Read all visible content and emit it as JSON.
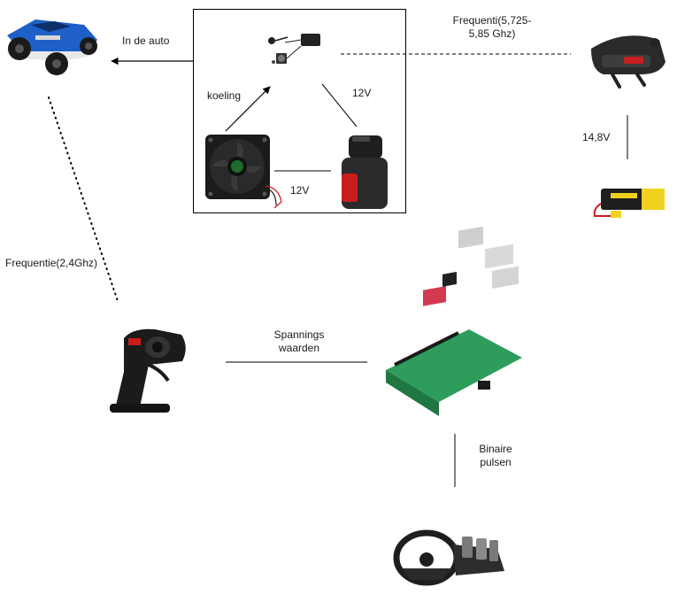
{
  "labels": {
    "in_de_auto": "In de auto",
    "koeling": "koeling",
    "volt_top": "12V",
    "volt_bottom": "12V",
    "frequenti_vtx": "Frequenti(5,725-\n5,85 Ghz)",
    "volt_goggles": "14,8V",
    "frequentie_rc": "Frequentie(2,4Ghz)",
    "spannings": "Spannings\nwaarden",
    "binaire": "Binaire\npulsen"
  },
  "colors": {
    "line": "#000000",
    "car_blue": "#1f5fc8",
    "fan_black": "#1b1b1b",
    "battery_red": "#c81e1e",
    "lipo_yellow": "#f0d21e",
    "pi_green": "#2e9d5b",
    "pi_red": "#d43a4f"
  },
  "icons": [
    "rc-car-icon",
    "fpv-camera-vtx-icon",
    "cooling-fan-icon",
    "12v-battery-icon",
    "fpv-goggles-icon",
    "lipo-battery-icon",
    "rc-transmitter-icon",
    "raspberry-pi-icon",
    "steering-wheel-pedals-icon"
  ]
}
